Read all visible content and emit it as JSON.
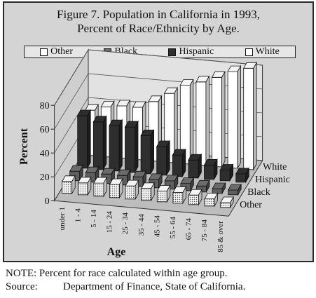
{
  "figure_title_line1": "Figure 7.   Population in California in 1993,",
  "figure_title_line2": "Percent of Race/Ethnicity by Age.",
  "note": "NOTE:  Percent for race calculated within age group.",
  "source_label": "Source:",
  "source_text": "Department of Finance, State of California.",
  "legend": [
    {
      "label": "Other",
      "color": "#ffffff"
    },
    {
      "label": "Black",
      "color": "#6b6b6b"
    },
    {
      "label": "Hispanic",
      "color": "#2e2e2e"
    },
    {
      "label": "White",
      "color": "#ffffff"
    }
  ],
  "chart_data": {
    "type": "bar",
    "subtype": "3d-grouped",
    "title": "Figure 7.   Population in California in 1993, Percent of Race/Ethnicity by Age.",
    "xlabel": "Age",
    "ylabel": "Percent",
    "ylim": [
      0,
      80
    ],
    "yticks": [
      0,
      20,
      40,
      60,
      80
    ],
    "grid": true,
    "legend_position": "top",
    "categories": [
      "under 1",
      "1 - 4",
      "5 - 14",
      "15 - 24",
      "25 - 34",
      "35 - 44",
      "45 - 54",
      "55 - 64",
      "65 - 74",
      "75 - 84",
      "85 & over"
    ],
    "series": [
      {
        "name": "Other",
        "color": "#ffffff",
        "values": [
          10,
          10,
          11,
          11,
          11,
          10,
          9,
          9,
          8,
          6,
          4
        ]
      },
      {
        "name": "Black",
        "color": "#6b6b6b",
        "values": [
          8,
          8,
          8,
          8,
          8,
          7,
          7,
          6,
          5,
          4,
          4
        ]
      },
      {
        "name": "Hispanic",
        "color": "#2e2e2e",
        "values": [
          44,
          40,
          38,
          38,
          32,
          24,
          18,
          15,
          12,
          9,
          7
        ]
      },
      {
        "name": "White",
        "color": "#ffffff",
        "values": [
          38,
          42,
          44,
          44,
          50,
          58,
          66,
          70,
          75,
          81,
          85
        ]
      }
    ],
    "depth_labels": [
      "Other",
      "Black",
      "Hispanic",
      "White"
    ]
  }
}
